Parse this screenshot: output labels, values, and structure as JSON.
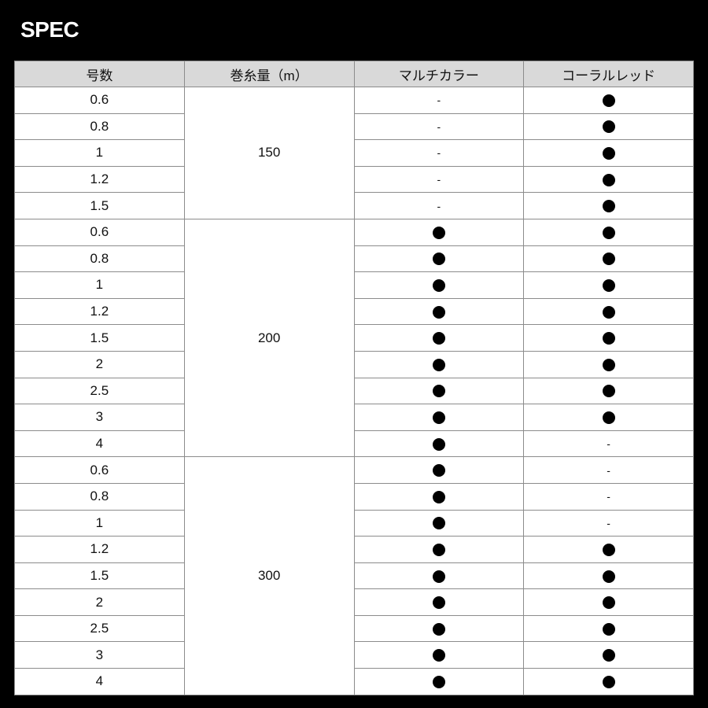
{
  "title": "SPEC",
  "table": {
    "headers": [
      "号数",
      "巻糸量（m）",
      "マルチカラー",
      "コーラルレッド"
    ],
    "groups": [
      {
        "length": "150",
        "rows": [
          {
            "size": "0.6",
            "multi": "-",
            "coral": "●"
          },
          {
            "size": "0.8",
            "multi": "-",
            "coral": "●"
          },
          {
            "size": "1",
            "multi": "-",
            "coral": "●"
          },
          {
            "size": "1.2",
            "multi": "-",
            "coral": "●"
          },
          {
            "size": "1.5",
            "multi": "-",
            "coral": "●"
          }
        ]
      },
      {
        "length": "200",
        "rows": [
          {
            "size": "0.6",
            "multi": "●",
            "coral": "●"
          },
          {
            "size": "0.8",
            "multi": "●",
            "coral": "●"
          },
          {
            "size": "1",
            "multi": "●",
            "coral": "●"
          },
          {
            "size": "1.2",
            "multi": "●",
            "coral": "●"
          },
          {
            "size": "1.5",
            "multi": "●",
            "coral": "●"
          },
          {
            "size": "2",
            "multi": "●",
            "coral": "●"
          },
          {
            "size": "2.5",
            "multi": "●",
            "coral": "●"
          },
          {
            "size": "3",
            "multi": "●",
            "coral": "●"
          },
          {
            "size": "4",
            "multi": "●",
            "coral": "-"
          }
        ]
      },
      {
        "length": "300",
        "rows": [
          {
            "size": "0.6",
            "multi": "●",
            "coral": "-"
          },
          {
            "size": "0.8",
            "multi": "●",
            "coral": "-"
          },
          {
            "size": "1",
            "multi": "●",
            "coral": "-"
          },
          {
            "size": "1.2",
            "multi": "●",
            "coral": "●"
          },
          {
            "size": "1.5",
            "multi": "●",
            "coral": "●"
          },
          {
            "size": "2",
            "multi": "●",
            "coral": "●"
          },
          {
            "size": "2.5",
            "multi": "●",
            "coral": "●"
          },
          {
            "size": "3",
            "multi": "●",
            "coral": "●"
          },
          {
            "size": "4",
            "multi": "●",
            "coral": "●"
          }
        ]
      }
    ]
  },
  "colors": {
    "background": "#000000",
    "header_bg": "#d9d9d9",
    "border": "#8c8c8c"
  }
}
